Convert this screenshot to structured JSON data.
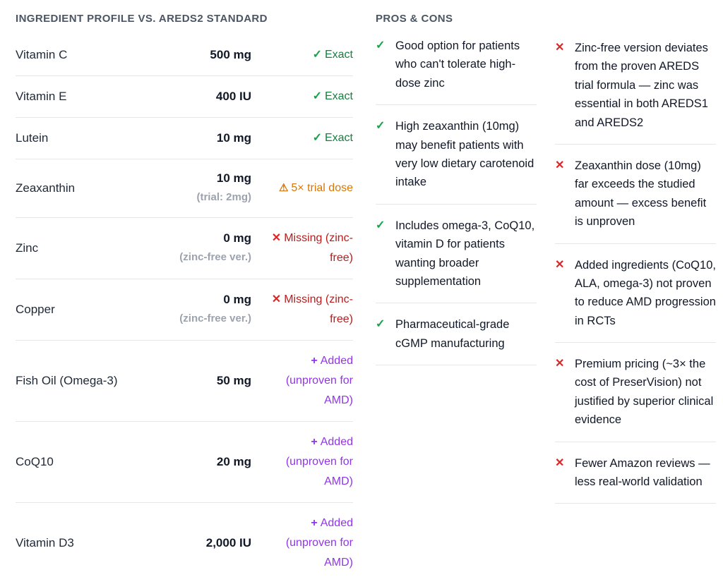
{
  "table": {
    "title": "INGREDIENT PROFILE VS. AREDS2 STANDARD",
    "rows": [
      {
        "name": "Vitamin C",
        "amount": "500 mg",
        "icon": "✓",
        "status": "Exact"
      },
      {
        "name": "Vitamin E",
        "amount": "400 IU",
        "icon": "✓",
        "status": "Exact"
      },
      {
        "name": "Lutein",
        "amount": "10 mg",
        "icon": "✓",
        "status": "Exact"
      },
      {
        "name": "Zeaxanthin",
        "amount": "10 mg",
        "note": "(trial: 2mg)",
        "icon": "⚠",
        "status": "5× trial dose"
      },
      {
        "name": "Zinc",
        "amount": "0 mg",
        "note": "(zinc-free ver.)",
        "icon": "✕",
        "status": "Missing (zinc-free)"
      },
      {
        "name": "Copper",
        "amount": "0 mg",
        "note": "(zinc-free ver.)",
        "icon": "✕",
        "status": "Missing (zinc-free)"
      },
      {
        "name": "Fish Oil (Omega-3)",
        "amount": "50 mg",
        "icon": "+",
        "status": "Added (unproven for AMD)"
      },
      {
        "name": "CoQ10",
        "amount": "20 mg",
        "icon": "+",
        "status": "Added (unproven for AMD)"
      },
      {
        "name": "Vitamin D3",
        "amount": "2,000 IU",
        "icon": "+",
        "status": "Added (unproven for AMD)"
      }
    ]
  },
  "pros_cons": {
    "title": "PROS & CONS",
    "pro_icon": "✓",
    "con_icon": "✕",
    "pros": [
      "Good option for patients who can't tolerate high-dose zinc",
      "High zeaxanthin (10mg) may benefit patients with very low dietary carotenoid intake",
      "Includes omega-3, CoQ10, vitamin D for patients wanting broader supplementation",
      "Pharmaceutical-grade cGMP manufacturing"
    ],
    "cons": [
      "Zinc-free version deviates from the proven AREDS trial formula — zinc was essential in both AREDS1 and AREDS2",
      "Zeaxanthin dose (10mg) far exceeds the studied amount — excess benefit is unproven",
      "Added ingredients (CoQ10, ALA, omega-3) not proven to reduce AMD progression in RCTs",
      "Premium pricing (~3× the cost of PreserVision) not justified by superior clinical evidence",
      "Fewer Amazon reviews — less real-world validation"
    ]
  },
  "colors": {
    "exact_green": "#15803d",
    "warning_orange": "#d97706",
    "missing_red": "#b91c1c",
    "added_purple": "#9333ea",
    "pro_check_green": "#16a34a",
    "con_x_red": "#dc2626",
    "divider_gray": "#e5e7eb",
    "note_gray": "#9ca3af",
    "title_gray": "#4b5563"
  }
}
